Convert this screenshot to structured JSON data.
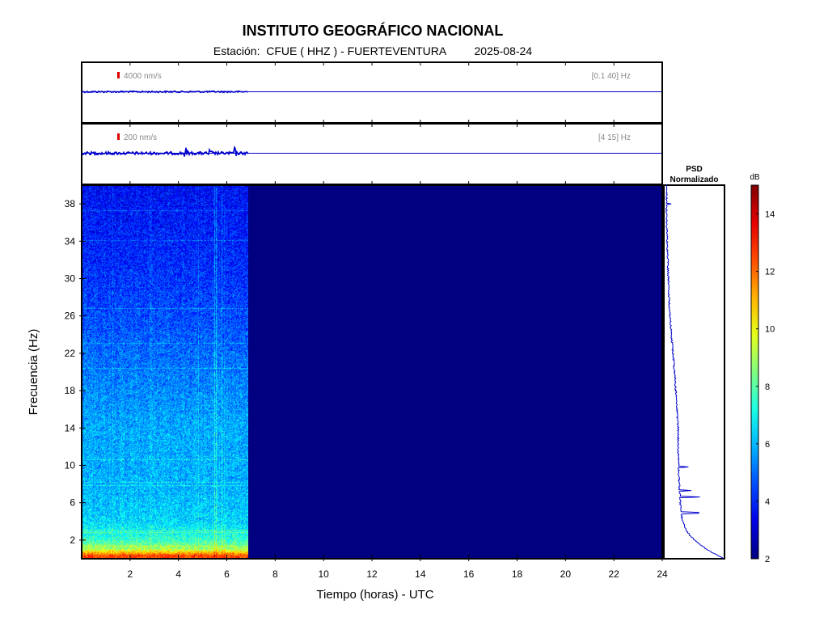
{
  "header": {
    "title": "INSTITUTO GEOGRÁFICO NACIONAL",
    "station_label": "Estación:",
    "station": "CFUE ( HHZ ) - FUERTEVENTURA",
    "date": "2025-08-24"
  },
  "chart_data": [
    {
      "type": "line",
      "panel": "waveform-broadband",
      "scale_label": "4000 nm/s",
      "band_label": "[0.1 40] Hz",
      "x_range": [
        0,
        24
      ],
      "data_end_hour": 6.9,
      "relative_amplitude": 0.15,
      "bursts": [],
      "line_color": "#0000cc",
      "scale_mark_color": "#dd0000"
    },
    {
      "type": "line",
      "panel": "waveform-filtered",
      "scale_label": "200 nm/s",
      "band_label": "[4 15] Hz",
      "x_range": [
        0,
        24
      ],
      "data_end_hour": 6.9,
      "relative_amplitude": 0.3,
      "bursts": [
        {
          "x": 4.3,
          "amp": 1.5
        },
        {
          "x": 5.3,
          "amp": 1.0
        },
        {
          "x": 6.3,
          "amp": 2.0
        }
      ],
      "line_color": "#0000cc",
      "scale_mark_color": "#dd0000"
    },
    {
      "type": "heatmap",
      "panel": "spectrogram",
      "xlabel": "Tiempo (horas) - UTC",
      "ylabel": "Frecuencia  (Hz)",
      "x_range": [
        0,
        24
      ],
      "y_range": [
        0,
        40
      ],
      "x_ticks": [
        2,
        4,
        6,
        8,
        10,
        12,
        14,
        16,
        18,
        20,
        22,
        24
      ],
      "y_ticks": [
        2,
        6,
        10,
        14,
        18,
        22,
        26,
        30,
        34,
        38
      ],
      "data_end_hour": 6.9,
      "no_data_value_db": 2,
      "spectral_profile": [
        {
          "f": 0.3,
          "db": 12.5
        },
        {
          "f": 1,
          "db": 9
        },
        {
          "f": 2,
          "db": 7.5
        },
        {
          "f": 4,
          "db": 6.4
        },
        {
          "f": 8,
          "db": 5.9
        },
        {
          "f": 14,
          "db": 5.8
        },
        {
          "f": 20,
          "db": 5.2
        },
        {
          "f": 26,
          "db": 4.6
        },
        {
          "f": 32,
          "db": 4.1
        },
        {
          "f": 38,
          "db": 3.8
        },
        {
          "f": 40,
          "db": 3.6
        }
      ]
    },
    {
      "type": "line",
      "panel": "psd",
      "title_line1": "PSD",
      "title_line2": "Normalizado",
      "x_range": [
        0,
        1
      ],
      "y_range": [
        0,
        40
      ],
      "points": [
        {
          "f": 0.1,
          "v": 1.0
        },
        {
          "f": 0.5,
          "v": 0.86
        },
        {
          "f": 1,
          "v": 0.72
        },
        {
          "f": 2,
          "v": 0.5
        },
        {
          "f": 3,
          "v": 0.36
        },
        {
          "f": 4,
          "v": 0.3
        },
        {
          "f": 5,
          "v": 0.27
        },
        {
          "f": 6,
          "v": 0.26
        },
        {
          "f": 8,
          "v": 0.24
        },
        {
          "f": 10,
          "v": 0.23
        },
        {
          "f": 12,
          "v": 0.22
        },
        {
          "f": 14,
          "v": 0.22
        },
        {
          "f": 16,
          "v": 0.2
        },
        {
          "f": 18,
          "v": 0.18
        },
        {
          "f": 20,
          "v": 0.16
        },
        {
          "f": 22,
          "v": 0.13
        },
        {
          "f": 24,
          "v": 0.1
        },
        {
          "f": 26,
          "v": 0.08
        },
        {
          "f": 28,
          "v": 0.06
        },
        {
          "f": 30,
          "v": 0.05
        },
        {
          "f": 32,
          "v": 0.04
        },
        {
          "f": 34,
          "v": 0.03
        },
        {
          "f": 36,
          "v": 0.02
        },
        {
          "f": 38,
          "v": 0.02
        },
        {
          "f": 40,
          "v": 0.02
        }
      ],
      "spikes": [
        {
          "f": 4.9,
          "v": 0.58
        },
        {
          "f": 6.6,
          "v": 0.6
        },
        {
          "f": 7.3,
          "v": 0.45
        },
        {
          "f": 9.8,
          "v": 0.4
        },
        {
          "f": 38,
          "v": 0.1
        }
      ],
      "line_color": "#0000cc"
    },
    {
      "type": "heatmap",
      "panel": "colorbar",
      "label": "dB",
      "range": [
        2,
        15
      ],
      "ticks": [
        2,
        4,
        6,
        8,
        10,
        12,
        14
      ],
      "colormap": "jet"
    }
  ]
}
